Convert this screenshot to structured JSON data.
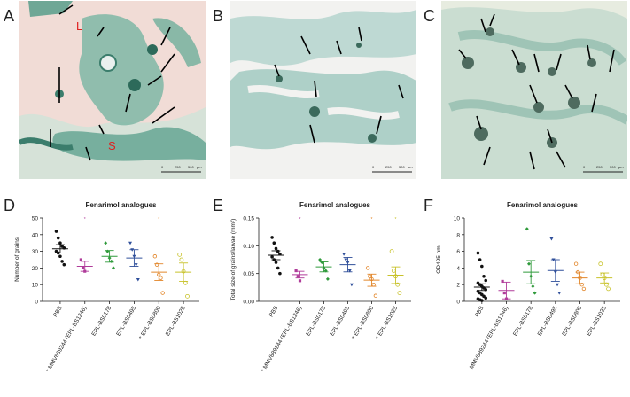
{
  "panels": {
    "A": {
      "letter": "A",
      "labels": [
        "L",
        "S"
      ],
      "scalebar": {
        "ticks": [
          "0",
          "250",
          "500"
        ],
        "unit": "µm"
      }
    },
    "B": {
      "letter": "B",
      "scalebar": {
        "ticks": [
          "0",
          "250",
          "500"
        ],
        "unit": "µm"
      }
    },
    "C": {
      "letter": "C",
      "scalebar": {
        "ticks": [
          "0",
          "250",
          "500"
        ],
        "unit": "µm"
      }
    },
    "D": {
      "letter": "D"
    },
    "E": {
      "letter": "E"
    },
    "F": {
      "letter": "F"
    }
  },
  "colors": {
    "PBS": "#111111",
    "MMV689244 (EPL-BS1246)": "#b03c9a",
    "EPL-BS0178": "#2f9a3b",
    "EPL-BS0495": "#2f4f9a",
    "EPL-BS0800": "#e2862a",
    "EPL-BS1025": "#c8c22a",
    "tissue": "#2e8c7a",
    "background": "#f1dcd6"
  },
  "chart_data": [
    {
      "type": "scatter",
      "title": "Fenarimol analogues",
      "ylabel": "Number of grains",
      "ylim": [
        0,
        50
      ],
      "yticks": [
        0,
        10,
        20,
        30,
        40,
        50
      ],
      "categories": [
        "PBS",
        "MMV689244 (EPL-BS1246)",
        "EPL-BS0178",
        "EPL-BS0495",
        "EPL-BS0800",
        "EPL-BS1025"
      ],
      "markers": [
        "",
        "*",
        "",
        "",
        "*",
        ""
      ],
      "series": [
        {
          "category": "PBS",
          "mean": 31.5,
          "sem": 2.5,
          "points": [
            42,
            38,
            35,
            33,
            32,
            30,
            29,
            27,
            24,
            22
          ]
        },
        {
          "category": "MMV689244 (EPL-BS1246)",
          "mean": 21,
          "sem": 3,
          "points": [
            25,
            20,
            18
          ]
        },
        {
          "category": "EPL-BS0178",
          "mean": 27,
          "sem": 3.5,
          "points": [
            35,
            30,
            26,
            24,
            20
          ]
        },
        {
          "category": "EPL-BS0495",
          "mean": 26,
          "sem": 5,
          "points": [
            35,
            31,
            27,
            22,
            13
          ]
        },
        {
          "category": "EPL-BS0800",
          "mean": 17.5,
          "sem": 5,
          "points": [
            27,
            22,
            16,
            14,
            5
          ]
        },
        {
          "category": "EPL-BS1025",
          "mean": 17.5,
          "sem": 5.5,
          "points": [
            28,
            25,
            18,
            11,
            3
          ]
        }
      ]
    },
    {
      "type": "scatter",
      "title": "Fenarimol analogues",
      "ylabel": "Total size of grains/larvae (mm²)",
      "ylim": [
        0,
        0.15
      ],
      "yticks": [
        "0.00",
        "0.05",
        "0.10",
        "0.15"
      ],
      "categories": [
        "PBS",
        "MMV689244 (EPL-BS1246)",
        "EPL-BS0178",
        "EPL-BS0495",
        "EPL-BS0800",
        "EPL-BS1025"
      ],
      "markers": [
        "",
        "*",
        "",
        "",
        "*",
        "*"
      ],
      "series": [
        {
          "category": "PBS",
          "mean": 0.083,
          "sem": 0.008,
          "points": [
            0.115,
            0.105,
            0.095,
            0.09,
            0.085,
            0.08,
            0.075,
            0.07,
            0.06,
            0.05
          ]
        },
        {
          "category": "MMV689244 (EPL-BS1246)",
          "mean": 0.048,
          "sem": 0.006,
          "points": [
            0.055,
            0.045,
            0.037
          ]
        },
        {
          "category": "EPL-BS0178",
          "mean": 0.062,
          "sem": 0.009,
          "points": [
            0.075,
            0.07,
            0.06,
            0.055,
            0.04
          ]
        },
        {
          "category": "EPL-BS0495",
          "mean": 0.066,
          "sem": 0.013,
          "points": [
            0.085,
            0.075,
            0.07,
            0.055,
            0.03
          ]
        },
        {
          "category": "EPL-BS0800",
          "mean": 0.038,
          "sem": 0.011,
          "points": [
            0.06,
            0.045,
            0.04,
            0.03,
            0.01
          ]
        },
        {
          "category": "EPL-BS1025",
          "mean": 0.047,
          "sem": 0.015,
          "points": [
            0.09,
            0.055,
            0.045,
            0.03,
            0.015
          ]
        }
      ]
    },
    {
      "type": "scatter",
      "title": "Fenarimol analogues",
      "ylabel": "OD405 nm",
      "ylim": [
        0,
        10
      ],
      "yticks": [
        0,
        2,
        4,
        6,
        8,
        10
      ],
      "categories": [
        "PBS",
        "MMV689244 (EPL-BS1246)",
        "EPL-BS0178",
        "EPL-BS0495",
        "EPL-BS0800",
        "EPL-BS1025"
      ],
      "markers": [
        "",
        "",
        "",
        "",
        "",
        ""
      ],
      "series": [
        {
          "category": "PBS",
          "mean": 1.7,
          "sem": 0.4,
          "points": [
            5.8,
            5.0,
            4.2,
            3.0,
            2.5,
            2.2,
            2.0,
            1.8,
            1.6,
            1.4,
            1.2,
            1.0,
            0.8,
            0.6,
            0.4,
            0.3,
            0.2,
            0.1
          ]
        },
        {
          "category": "MMV689244 (EPL-BS1246)",
          "mean": 1.3,
          "sem": 1.0,
          "points": [
            2.4,
            1.0,
            0.3
          ]
        },
        {
          "category": "EPL-BS0178",
          "mean": 3.5,
          "sem": 1.4,
          "points": [
            8.7,
            4.5,
            3.0,
            1.8,
            1.0
          ]
        },
        {
          "category": "EPL-BS0495",
          "mean": 3.7,
          "sem": 1.3,
          "points": [
            7.5,
            5.0,
            3.5,
            2.0,
            1.0
          ]
        },
        {
          "category": "EPL-BS0800",
          "mean": 2.8,
          "sem": 0.7,
          "points": [
            4.5,
            3.5,
            2.8,
            2.0,
            1.5
          ]
        },
        {
          "category": "EPL-BS1025",
          "mean": 2.8,
          "sem": 0.6,
          "points": [
            4.5,
            3.2,
            2.8,
            2.0,
            1.5
          ]
        }
      ]
    }
  ]
}
